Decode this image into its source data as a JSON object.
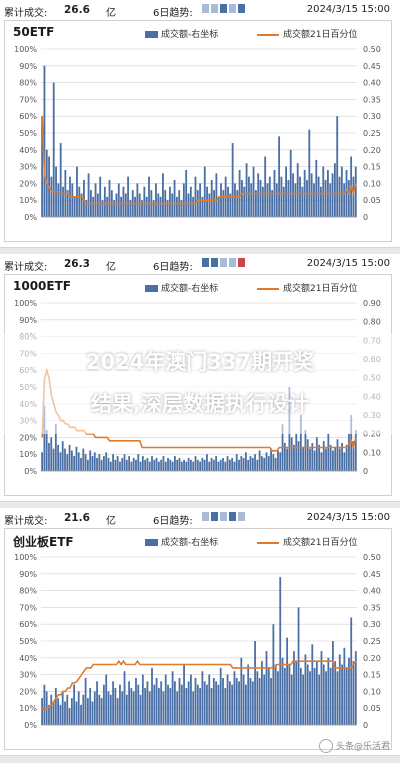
{
  "colors": {
    "bar": "#4a6fa5",
    "line": "#e07b2e",
    "grid": "#d0d0d0"
  },
  "header_common": {
    "label": "累计成交:",
    "unit": "亿",
    "trend_label": "6日趋势:",
    "date": "2024/3/15 15:00",
    "legend_bar": "成交额-右坐标",
    "legend_line": "成交额21日百分位"
  },
  "panels": [
    {
      "value": "26.6",
      "trend_colors": [
        "#a8bcd8",
        "#a8bcd8",
        "#4a6fa5",
        "#a8bcd8",
        "#4a6fa5"
      ]
    },
    {
      "value": "26.3",
      "trend_colors": [
        "#4a6fa5",
        "#4a6fa5",
        "#a8bcd8",
        "#a8bcd8",
        "#c8484a"
      ]
    },
    {
      "value": "21.6",
      "trend_colors": [
        "#a8bcd8",
        "#4a6fa5",
        "#a8bcd8",
        "#4a6fa5",
        "#a8bcd8"
      ]
    }
  ],
  "chart_data": [
    {
      "type": "bar",
      "title": "50ETF",
      "left_axis": {
        "ticks": [
          "0%",
          "10%",
          "20%",
          "30%",
          "40%",
          "50%",
          "60%",
          "70%",
          "80%",
          "90%",
          "100%"
        ],
        "range": [
          0,
          1
        ]
      },
      "right_axis": {
        "ticks": [
          "0",
          "0.05",
          "0.10",
          "0.15",
          "0.20",
          "0.25",
          "0.30",
          "0.35",
          "0.40",
          "0.45",
          "0.50"
        ],
        "range": [
          0,
          0.5
        ]
      },
      "series": [
        {
          "name": "成交额-右坐标",
          "kind": "bar",
          "values": [
            0.3,
            0.45,
            0.2,
            0.18,
            0.12,
            0.4,
            0.15,
            0.1,
            0.22,
            0.09,
            0.14,
            0.08,
            0.12,
            0.1,
            0.06,
            0.15,
            0.09,
            0.07,
            0.11,
            0.05,
            0.13,
            0.08,
            0.06,
            0.1,
            0.07,
            0.12,
            0.05,
            0.09,
            0.06,
            0.11,
            0.08,
            0.05,
            0.07,
            0.1,
            0.06,
            0.09,
            0.07,
            0.12,
            0.05,
            0.08,
            0.06,
            0.1,
            0.07,
            0.05,
            0.09,
            0.06,
            0.12,
            0.08,
            0.05,
            0.1,
            0.07,
            0.06,
            0.13,
            0.08,
            0.05,
            0.09,
            0.07,
            0.11,
            0.06,
            0.08,
            0.05,
            0.1,
            0.14,
            0.07,
            0.09,
            0.06,
            0.12,
            0.08,
            0.1,
            0.06,
            0.15,
            0.09,
            0.07,
            0.11,
            0.08,
            0.13,
            0.06,
            0.1,
            0.08,
            0.12,
            0.09,
            0.07,
            0.22,
            0.1,
            0.08,
            0.14,
            0.11,
            0.09,
            0.16,
            0.12,
            0.1,
            0.15,
            0.08,
            0.13,
            0.11,
            0.09,
            0.18,
            0.1,
            0.12,
            0.08,
            0.14,
            0.1,
            0.24,
            0.12,
            0.09,
            0.15,
            0.11,
            0.2,
            0.13,
            0.1,
            0.16,
            0.12,
            0.09,
            0.14,
            0.11,
            0.26,
            0.13,
            0.1,
            0.17,
            0.12,
            0.09,
            0.15,
            0.11,
            0.14,
            0.1,
            0.13,
            0.16,
            0.3,
            0.12,
            0.15,
            0.1,
            0.14,
            0.11,
            0.18,
            0.12,
            0.15
          ]
        },
        {
          "name": "成交额21日百分位",
          "kind": "line",
          "values": [
            0.6,
            0.25,
            0.2,
            0.18,
            0.15,
            0.15,
            0.15,
            0.14,
            0.14,
            0.14,
            0.14,
            0.14,
            0.12,
            0.12,
            0.12,
            0.12,
            0.12,
            0.12,
            0.1,
            0.08,
            0.08,
            0.08,
            0.08,
            0.08,
            0.08,
            0.08,
            0.08,
            0.08,
            0.08,
            0.08,
            0.08,
            0.08,
            0.08,
            0.08,
            0.08,
            0.08,
            0.08,
            0.08,
            0.08,
            0.08,
            0.08,
            0.08,
            0.08,
            0.08,
            0.08,
            0.08,
            0.08,
            0.08,
            0.08,
            0.08,
            0.08,
            0.08,
            0.08,
            0.08,
            0.08,
            0.08,
            0.08,
            0.08,
            0.08,
            0.08,
            0.08,
            0.08,
            0.08,
            0.08,
            0.08,
            0.08,
            0.08,
            0.1,
            0.1,
            0.1,
            0.1,
            0.1,
            0.1,
            0.1,
            0.1,
            0.1,
            0.12,
            0.12,
            0.12,
            0.12,
            0.12,
            0.12,
            0.12,
            0.12,
            0.12,
            0.12,
            0.14,
            0.14,
            0.14,
            0.14,
            0.14,
            0.14,
            0.14,
            0.14,
            0.14,
            0.14,
            0.14,
            0.14,
            0.14,
            0.14,
            0.14,
            0.14,
            0.14,
            0.14,
            0.14,
            0.14,
            0.14,
            0.14,
            0.14,
            0.14,
            0.14,
            0.14,
            0.14,
            0.14,
            0.14,
            0.14,
            0.14,
            0.14,
            0.14,
            0.14,
            0.14,
            0.14,
            0.14,
            0.14,
            0.14,
            0.14,
            0.14,
            0.14,
            0.14,
            0.14,
            0.14,
            0.16,
            0.14,
            0.18,
            0.14,
            0.2
          ]
        }
      ]
    },
    {
      "type": "bar",
      "title": "1000ETF",
      "left_axis": {
        "ticks": [
          "0%",
          "10%",
          "20%",
          "30%",
          "40%",
          "50%",
          "60%",
          "70%",
          "80%",
          "90%",
          "100%"
        ],
        "range": [
          0,
          1
        ]
      },
      "right_axis": {
        "ticks": [
          "0",
          "0.10",
          "0.20",
          "0.30",
          "0.40",
          "0.50",
          "0.60",
          "0.70",
          "0.80",
          "0.90"
        ],
        "range": [
          0,
          0.9
        ]
      },
      "series": [
        {
          "name": "成交额-右坐标",
          "kind": "bar",
          "values": [
            0.1,
            0.35,
            0.22,
            0.15,
            0.18,
            0.12,
            0.25,
            0.14,
            0.1,
            0.16,
            0.12,
            0.09,
            0.14,
            0.11,
            0.08,
            0.13,
            0.1,
            0.07,
            0.12,
            0.09,
            0.06,
            0.11,
            0.08,
            0.1,
            0.07,
            0.09,
            0.06,
            0.08,
            0.1,
            0.07,
            0.05,
            0.09,
            0.06,
            0.08,
            0.05,
            0.07,
            0.09,
            0.06,
            0.08,
            0.05,
            0.07,
            0.06,
            0.09,
            0.05,
            0.08,
            0.06,
            0.07,
            0.05,
            0.08,
            0.06,
            0.07,
            0.05,
            0.06,
            0.08,
            0.05,
            0.07,
            0.06,
            0.05,
            0.08,
            0.06,
            0.07,
            0.05,
            0.06,
            0.05,
            0.07,
            0.06,
            0.05,
            0.08,
            0.06,
            0.05,
            0.07,
            0.06,
            0.09,
            0.05,
            0.07,
            0.06,
            0.08,
            0.05,
            0.06,
            0.07,
            0.05,
            0.08,
            0.06,
            0.07,
            0.05,
            0.09,
            0.06,
            0.08,
            0.07,
            0.1,
            0.06,
            0.08,
            0.07,
            0.09,
            0.06,
            0.11,
            0.08,
            0.07,
            0.1,
            0.08,
            0.12,
            0.09,
            0.07,
            0.11,
            0.1,
            0.25,
            0.15,
            0.12,
            0.45,
            0.18,
            0.14,
            0.2,
            0.16,
            0.3,
            0.13,
            0.22,
            0.17,
            0.12,
            0.15,
            0.11,
            0.18,
            0.14,
            0.1,
            0.16,
            0.12,
            0.2,
            0.14,
            0.11,
            0.13,
            0.17,
            0.12,
            0.15,
            0.1,
            0.14,
            0.2,
            0.3,
            0.16,
            0.22
          ]
        },
        {
          "name": "成交额21日百分位",
          "kind": "line",
          "values": [
            0.2,
            0.55,
            0.6,
            0.55,
            0.45,
            0.4,
            0.35,
            0.33,
            0.3,
            0.3,
            0.28,
            0.28,
            0.26,
            0.26,
            0.26,
            0.24,
            0.24,
            0.24,
            0.24,
            0.22,
            0.22,
            0.22,
            0.22,
            0.2,
            0.2,
            0.2,
            0.2,
            0.2,
            0.2,
            0.18,
            0.18,
            0.18,
            0.18,
            0.18,
            0.18,
            0.18,
            0.18,
            0.18,
            0.18,
            0.18,
            0.18,
            0.18,
            0.18,
            0.14,
            0.14,
            0.14,
            0.14,
            0.14,
            0.14,
            0.14,
            0.14,
            0.14,
            0.14,
            0.14,
            0.14,
            0.14,
            0.14,
            0.14,
            0.14,
            0.14,
            0.14,
            0.14,
            0.14,
            0.14,
            0.14,
            0.14,
            0.14,
            0.14,
            0.14,
            0.14,
            0.14,
            0.14,
            0.14,
            0.14,
            0.14,
            0.14,
            0.14,
            0.14,
            0.14,
            0.14,
            0.14,
            0.14,
            0.14,
            0.14,
            0.14,
            0.14,
            0.14,
            0.14,
            0.14,
            0.14,
            0.14,
            0.14,
            0.14,
            0.14,
            0.14,
            0.14,
            0.14,
            0.14,
            0.14,
            0.12,
            0.12,
            0.12,
            0.14,
            0.14,
            0.14,
            0.14,
            0.14,
            0.14,
            0.14,
            0.14,
            0.14,
            0.14,
            0.14,
            0.14,
            0.14,
            0.14,
            0.14,
            0.14,
            0.14,
            0.14,
            0.14,
            0.14,
            0.14,
            0.14,
            0.14,
            0.14,
            0.14,
            0.14,
            0.14,
            0.14,
            0.14,
            0.14,
            0.16,
            0.18,
            0.14,
            0.2
          ]
        }
      ]
    },
    {
      "type": "bar",
      "title": "创业板ETF",
      "left_axis": {
        "ticks": [
          "0%",
          "10%",
          "20%",
          "30%",
          "40%",
          "50%",
          "60%",
          "70%",
          "80%",
          "90%",
          "100%"
        ],
        "range": [
          0,
          1
        ]
      },
      "right_axis": {
        "ticks": [
          "0",
          "0.05",
          "0.10",
          "0.15",
          "0.20",
          "0.25",
          "0.30",
          "0.35",
          "0.40",
          "0.45",
          "0.50"
        ],
        "range": [
          0,
          0.5
        ]
      },
      "series": [
        {
          "name": "成交额-右坐标",
          "kind": "bar",
          "values": [
            0.08,
            0.12,
            0.1,
            0.06,
            0.09,
            0.07,
            0.11,
            0.08,
            0.06,
            0.1,
            0.07,
            0.09,
            0.05,
            0.08,
            0.12,
            0.07,
            0.1,
            0.06,
            0.09,
            0.14,
            0.08,
            0.11,
            0.07,
            0.1,
            0.13,
            0.09,
            0.08,
            0.12,
            0.15,
            0.1,
            0.09,
            0.13,
            0.11,
            0.08,
            0.12,
            0.1,
            0.16,
            0.09,
            0.13,
            0.11,
            0.1,
            0.14,
            0.12,
            0.09,
            0.15,
            0.11,
            0.13,
            0.1,
            0.17,
            0.12,
            0.14,
            0.11,
            0.13,
            0.1,
            0.15,
            0.12,
            0.11,
            0.16,
            0.13,
            0.1,
            0.14,
            0.12,
            0.18,
            0.11,
            0.13,
            0.15,
            0.1,
            0.14,
            0.12,
            0.11,
            0.16,
            0.13,
            0.12,
            0.15,
            0.11,
            0.14,
            0.13,
            0.12,
            0.17,
            0.14,
            0.11,
            0.15,
            0.13,
            0.12,
            0.16,
            0.14,
            0.13,
            0.2,
            0.15,
            0.12,
            0.18,
            0.14,
            0.13,
            0.25,
            0.16,
            0.14,
            0.19,
            0.15,
            0.22,
            0.17,
            0.14,
            0.3,
            0.18,
            0.16,
            0.44,
            0.2,
            0.17,
            0.26,
            0.18,
            0.15,
            0.22,
            0.19,
            0.35,
            0.17,
            0.15,
            0.21,
            0.18,
            0.16,
            0.24,
            0.17,
            0.19,
            0.15,
            0.22,
            0.18,
            0.16,
            0.2,
            0.17,
            0.25,
            0.19,
            0.16,
            0.21,
            0.18,
            0.23,
            0.17,
            0.2,
            0.32,
            0.19,
            0.22
          ]
        },
        {
          "name": "成交额21日百分位",
          "kind": "line",
          "values": [
            0.1,
            0.09,
            0.1,
            0.11,
            0.12,
            0.14,
            0.16,
            0.18,
            0.18,
            0.2,
            0.2,
            0.22,
            0.22,
            0.25,
            0.25,
            0.26,
            0.28,
            0.3,
            0.32,
            0.34,
            0.34,
            0.34,
            0.36,
            0.36,
            0.36,
            0.36,
            0.36,
            0.36,
            0.36,
            0.36,
            0.36,
            0.36,
            0.36,
            0.38,
            0.36,
            0.38,
            0.36,
            0.36,
            0.36,
            0.36,
            0.36,
            0.38,
            0.36,
            0.36,
            0.36,
            0.36,
            0.36,
            0.36,
            0.36,
            0.36,
            0.36,
            0.36,
            0.36,
            0.36,
            0.36,
            0.36,
            0.36,
            0.36,
            0.36,
            0.36,
            0.36,
            0.36,
            0.36,
            0.36,
            0.36,
            0.36,
            0.36,
            0.36,
            0.36,
            0.36,
            0.36,
            0.36,
            0.36,
            0.36,
            0.36,
            0.36,
            0.36,
            0.36,
            0.36,
            0.36,
            0.36,
            0.36,
            0.34,
            0.34,
            0.34,
            0.34,
            0.34,
            0.34,
            0.34,
            0.34,
            0.34,
            0.34,
            0.34,
            0.34,
            0.34,
            0.34,
            0.34,
            0.34,
            0.34,
            0.34,
            0.34,
            0.36,
            0.36,
            0.36,
            0.36,
            0.36,
            0.36,
            0.36,
            0.38,
            0.38,
            0.38,
            0.38,
            0.38,
            0.38,
            0.38,
            0.38,
            0.38,
            0.38,
            0.38,
            0.38,
            0.38,
            0.38,
            0.38,
            0.38,
            0.38,
            0.38,
            0.34,
            0.34,
            0.34,
            0.34,
            0.34,
            0.34,
            0.34,
            0.34,
            0.36,
            0.38
          ]
        }
      ]
    }
  ],
  "overlay": {
    "line1": "2024年澳门337期开奖",
    "line2": "结果,深层数据执行设计"
  },
  "watermark": {
    "text": "头条@乐活君"
  }
}
